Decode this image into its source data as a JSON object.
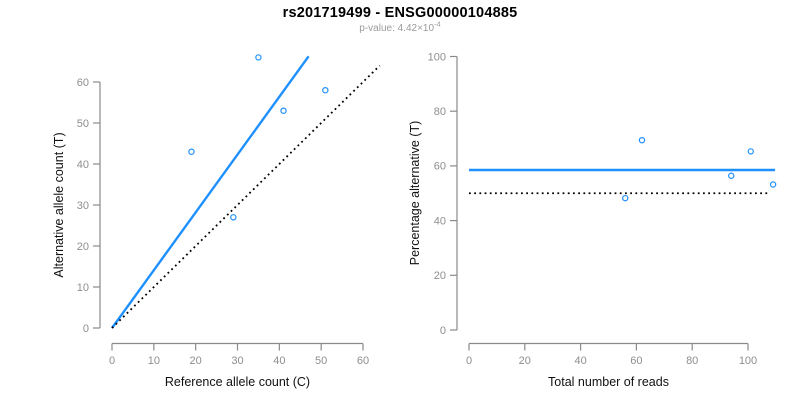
{
  "header": {
    "title": "rs201719499 - ENSG00000104885",
    "subtitle_text": "p-value: 4.42×10",
    "subtitle_exponent": "-4"
  },
  "colors": {
    "accent_blue": "#1E90FF",
    "line_black": "#000000",
    "axis_gray": "#8a8a8a",
    "tick_label_gray": "#8e8e8e",
    "axis_title_color": "#111111",
    "subtitle_gray": "#9b9b9b",
    "background": "#ffffff"
  },
  "chart_data": [
    {
      "type": "scatter",
      "name": "allele-counts",
      "title": "",
      "xlabel": "Reference allele count (C)",
      "ylabel": "Alternative allele count (T)",
      "xticks": [
        0,
        10,
        20,
        30,
        40,
        50,
        60
      ],
      "yticks": [
        0,
        10,
        20,
        30,
        40,
        50,
        60
      ],
      "xlim": [
        0,
        64
      ],
      "ylim": [
        0,
        67
      ],
      "grid": false,
      "legend": "none",
      "marker": "open-circle",
      "points": [
        {
          "x": 19,
          "y": 43
        },
        {
          "x": 29,
          "y": 27
        },
        {
          "x": 35,
          "y": 66
        },
        {
          "x": 41,
          "y": 53
        },
        {
          "x": 51,
          "y": 58
        }
      ],
      "lines": [
        {
          "name": "fit-line",
          "style": "solid",
          "color_key": "accent_blue",
          "slope": 1.41,
          "intercept": 0,
          "x_range": [
            0,
            47
          ]
        },
        {
          "name": "identity-line",
          "style": "dotted",
          "color_key": "line_black",
          "slope": 1,
          "intercept": 0,
          "x_range": [
            0,
            64
          ]
        }
      ]
    },
    {
      "type": "scatter",
      "name": "percentage-vs-reads",
      "title": "",
      "xlabel": "Total number of reads",
      "ylabel": "Percentage alternative (T)",
      "xticks": [
        0,
        20,
        40,
        60,
        80,
        100
      ],
      "yticks": [
        0,
        20,
        40,
        60,
        80,
        100
      ],
      "xlim": [
        0,
        110
      ],
      "ylim": [
        0,
        100
      ],
      "grid": false,
      "legend": "none",
      "marker": "open-circle",
      "points": [
        {
          "x": 56,
          "y": 48.2
        },
        {
          "x": 62,
          "y": 69.4
        },
        {
          "x": 94,
          "y": 56.4
        },
        {
          "x": 101,
          "y": 65.3
        },
        {
          "x": 109,
          "y": 53.2
        }
      ],
      "lines": [
        {
          "name": "mean-line",
          "style": "solid",
          "color_key": "accent_blue",
          "y": 58.5,
          "x_range": [
            0,
            109.7
          ]
        },
        {
          "name": "reference-line",
          "style": "dotted",
          "color_key": "line_black",
          "y": 50,
          "x_range": [
            0,
            107
          ]
        }
      ]
    }
  ]
}
